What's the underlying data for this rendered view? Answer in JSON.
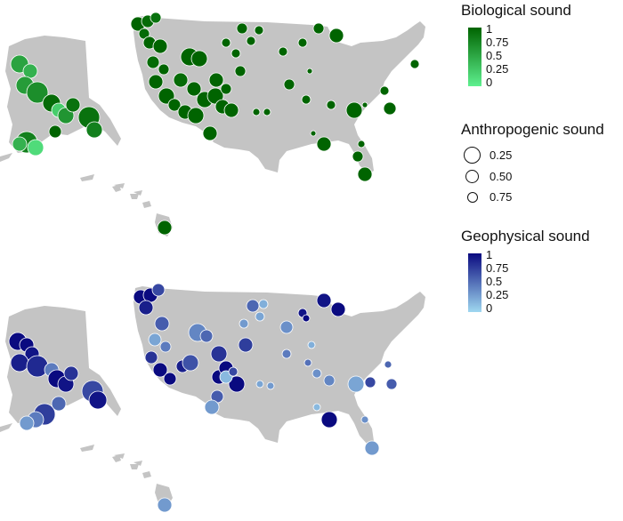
{
  "legend": {
    "biological": {
      "title": "Biological sound",
      "ticks": [
        "1",
        "0.75",
        "0.5",
        "0.25",
        "0"
      ],
      "color_high": "#006400",
      "color_low": "#5ef08f"
    },
    "anthropogenic": {
      "title": "Anthropogenic sound",
      "items": [
        {
          "label": "0.25",
          "value": 0.25
        },
        {
          "label": "0.50",
          "value": 0.5
        },
        {
          "label": "0.75",
          "value": 0.75
        }
      ]
    },
    "geophysical": {
      "title": "Geophysical sound",
      "ticks": [
        "1",
        "0.75",
        "0.5",
        "0.25",
        "0"
      ],
      "color_high": "#0a0a80",
      "color_low": "#9fd8f0"
    }
  },
  "colors": {
    "land": "#c4c4c4",
    "point_outline_bio": "#ffffff",
    "point_outline_geo": "#ffffff"
  }
}
